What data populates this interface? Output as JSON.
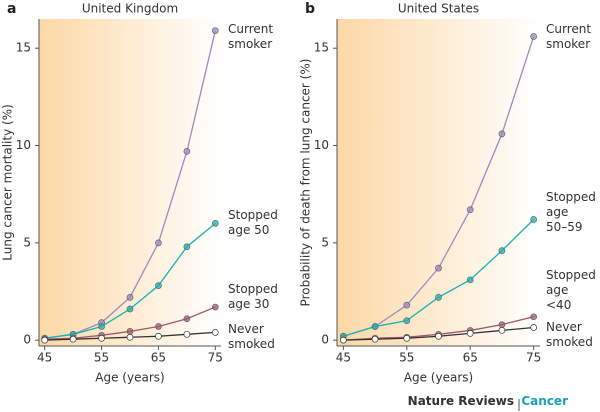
{
  "chart_data": [
    {
      "type": "line",
      "panel": "a",
      "title": "United Kingdom",
      "x_label": "Age (years)",
      "y_label": "Lung cancer mortality (%)",
      "x": [
        45,
        50,
        55,
        60,
        65,
        70,
        75
      ],
      "series": [
        {
          "name": "Current\nsmoker",
          "color": "#9a8bc6",
          "values": [
            0.1,
            0.3,
            0.9,
            2.2,
            5.0,
            9.7,
            15.9
          ]
        },
        {
          "name": "Stopped\nage 50",
          "color": "#17b2b5",
          "values": [
            0.1,
            0.3,
            0.7,
            1.6,
            2.8,
            4.8,
            6.0
          ]
        },
        {
          "name": "Stopped\nage 30",
          "color": "#a3566f",
          "values": [
            0.05,
            0.1,
            0.25,
            0.45,
            0.7,
            1.1,
            1.7
          ]
        },
        {
          "name": "Never\nsmoked",
          "color": "#333333",
          "values": [
            0.0,
            0.05,
            0.1,
            0.15,
            0.2,
            0.3,
            0.4
          ]
        }
      ],
      "xlim": [
        44,
        76
      ],
      "xticks": [
        45,
        55,
        65,
        75
      ],
      "ylim": [
        -0.3,
        16.5
      ],
      "yticks": [
        0,
        5,
        10,
        15
      ]
    },
    {
      "type": "line",
      "panel": "b",
      "title": "United States",
      "x_label": "Age (years)",
      "y_label": "Probability of death from lung cancer (%)",
      "x": [
        45,
        50,
        55,
        60,
        65,
        70,
        75
      ],
      "series": [
        {
          "name": "Current\nsmoker",
          "color": "#9a8bc6",
          "values": [
            0.2,
            0.7,
            1.8,
            3.7,
            6.7,
            10.6,
            15.6
          ]
        },
        {
          "name": "Stopped\nage\n50–59",
          "color": "#17b2b5",
          "values": [
            0.2,
            0.7,
            1.0,
            2.2,
            3.1,
            4.6,
            6.2
          ]
        },
        {
          "name": "Stopped\nage\n<40",
          "color": "#a3566f",
          "values": [
            0.0,
            0.1,
            0.15,
            0.3,
            0.5,
            0.8,
            1.2
          ]
        },
        {
          "name": "Never\nsmoked",
          "color": "#333333",
          "values": [
            0.0,
            0.05,
            0.1,
            0.2,
            0.35,
            0.5,
            0.65
          ]
        }
      ],
      "xlim": [
        44,
        76
      ],
      "xticks": [
        45,
        55,
        65,
        75
      ],
      "ylim": [
        -0.3,
        16.5
      ],
      "yticks": [
        0,
        5,
        10,
        15
      ]
    }
  ],
  "footer": {
    "journal": "Nature Reviews",
    "section": "Cancer"
  }
}
